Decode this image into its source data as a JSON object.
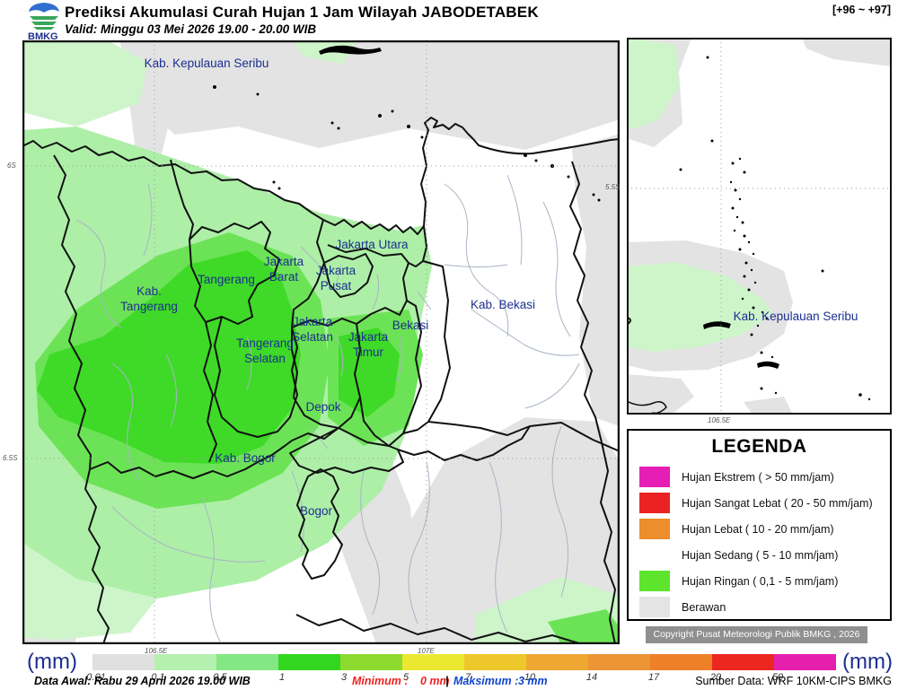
{
  "header": {
    "logo_text": "BMKG",
    "title": "Prediksi Akumulasi Curah Hujan 1 Jam Wilayah JABODETABEK",
    "valid_line": "Valid: Minggu 03 Mei 2026 19.00 - 20.00 WIB",
    "hour_range": "[+96 ~ +97]"
  },
  "main_map": {
    "labels": [
      {
        "lines": [
          "Kab. Kepulauan Seribu"
        ]
      },
      {
        "lines": [
          "Jakarta Utara"
        ]
      },
      {
        "lines": [
          "Jakarta",
          "Barat"
        ]
      },
      {
        "lines": [
          "Jakarta",
          "Pusat"
        ]
      },
      {
        "lines": [
          "Tangerang"
        ]
      },
      {
        "lines": [
          "Kab.",
          "Tangerang"
        ]
      },
      {
        "lines": [
          "Jakarta",
          "Selatan"
        ]
      },
      {
        "lines": [
          "Tangerang",
          "Selatan"
        ]
      },
      {
        "lines": [
          "Jakarta",
          "Timur"
        ]
      },
      {
        "lines": [
          "Bekasi"
        ]
      },
      {
        "lines": [
          "Kab. Bekasi"
        ]
      },
      {
        "lines": [
          "Depok"
        ]
      },
      {
        "lines": [
          "Kab. Bogor"
        ]
      },
      {
        "lines": [
          "Bogor"
        ]
      }
    ],
    "ticks": {
      "lat1": "6S",
      "lat2": "6.5S",
      "lon1": "106.5E",
      "lon2": "107E"
    }
  },
  "inset_map": {
    "label": "Kab. Kepulauan Seribu",
    "tick_lat": "5.5S",
    "tick_lon": "106.5E"
  },
  "legend": {
    "title": "LEGENDA",
    "items": [
      {
        "label": "Hujan Ekstrem ( > 50 mm/jam)",
        "color": "#e61eb5"
      },
      {
        "label": "Hujan Sangat Lebat ( 20 - 50 mm/jam)",
        "color": "#ec2222"
      },
      {
        "label": "Hujan Lebat ( 10 - 20 mm/jam)",
        "color": "#ec8e2b"
      },
      {
        "label": "Hujan Sedang ( 5 - 10 mm/jam)",
        "color": "#eccе29"
      },
      {
        "label": "Hujan Ringan ( 0,1 - 5 mm/jam)",
        "color": "#5ee42c"
      },
      {
        "label": "Berawan",
        "color": "#e4e4e4"
      }
    ]
  },
  "copyright": "Copyright Pusat Meteorologi Publik BMKG , 2026",
  "scale": {
    "unit_label": "(mm)",
    "stops": [
      {
        "label": "0.01",
        "color": "#e0e0e0"
      },
      {
        "label": "0.1",
        "color": "#b5f1ae"
      },
      {
        "label": "0.5",
        "color": "#83e883"
      },
      {
        "label": "1",
        "color": "#33d61e"
      },
      {
        "label": "3",
        "color": "#8edb2f"
      },
      {
        "label": "5",
        "color": "#ece832"
      },
      {
        "label": "7",
        "color": "#eec72b"
      },
      {
        "label": "10",
        "color": "#eea832"
      },
      {
        "label": "14",
        "color": "#ed9434"
      },
      {
        "label": "17",
        "color": "#ee8128"
      },
      {
        "label": "20",
        "color": "#eb2720"
      },
      {
        "label": "50",
        "color": "#e620ae"
      }
    ]
  },
  "footer": {
    "data_awal": "Data Awal: Rabu 29 April 2026 19.00 WIB",
    "minimum_label": "Minimum :",
    "minimum_value": "0 mm",
    "separator": "|",
    "maksimum_label": "Maksimum :",
    "maksimum_value": "3 mm",
    "sumber": "Sumber Data: WRF 10KM-CIPS BMKG"
  }
}
